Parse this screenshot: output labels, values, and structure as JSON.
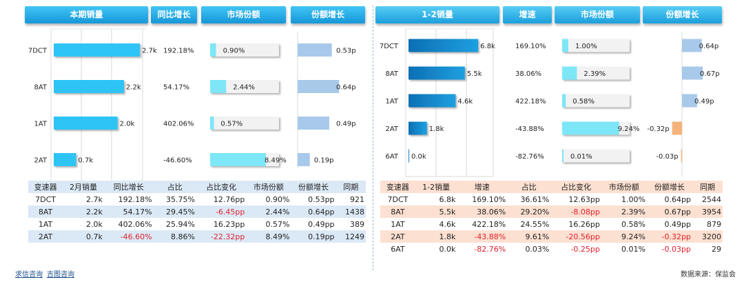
{
  "chart_data": [
    {
      "type": "bar",
      "title": "本期销量",
      "categories": [
        "7DCT",
        "8AT",
        "1AT",
        "2AT"
      ],
      "panels": [
        {
          "name": "本期销量",
          "values": [
            2.7,
            2.2,
            2.0,
            0.7
          ],
          "labels": [
            "2.7k",
            "2.2k",
            "2.0k",
            "0.7k"
          ]
        },
        {
          "name": "同比增长",
          "values": [
            192.18,
            54.17,
            402.06,
            -46.6
          ],
          "labels": [
            "192.18%",
            "54.17%",
            "402.06%",
            "-46.60%"
          ]
        },
        {
          "name": "市场份额",
          "values": [
            0.9,
            2.44,
            0.57,
            8.49
          ],
          "labels": [
            "0.90%",
            "2.44%",
            "0.57%",
            "8.49%"
          ]
        },
        {
          "name": "份额增长",
          "values": [
            0.53,
            0.64,
            0.49,
            0.19
          ],
          "labels": [
            "0.53p",
            "0.64p",
            "0.49p",
            "0.19p"
          ]
        }
      ]
    },
    {
      "type": "bar",
      "title": "1-2销量",
      "categories": [
        "7DCT",
        "8AT",
        "1AT",
        "2AT",
        "6AT"
      ],
      "panels": [
        {
          "name": "1-2销量",
          "values": [
            6.8,
            5.5,
            4.6,
            1.8,
            0.0
          ],
          "labels": [
            "6.8k",
            "5.5k",
            "4.6k",
            "1.8k",
            "0.0k"
          ]
        },
        {
          "name": "增速",
          "values": [
            169.1,
            38.06,
            422.18,
            -43.88,
            -82.76
          ],
          "labels": [
            "169.10%",
            "38.06%",
            "422.18%",
            "-43.88%",
            "-82.76%"
          ]
        },
        {
          "name": "市场份额",
          "values": [
            1.0,
            2.39,
            0.58,
            9.24,
            0.01
          ],
          "labels": [
            "1.00%",
            "2.39%",
            "0.58%",
            "9.24%",
            "0.01%"
          ]
        },
        {
          "name": "份额增长",
          "values": [
            0.64,
            0.67,
            0.49,
            -0.32,
            -0.03
          ],
          "labels": [
            "0.64p",
            "0.67p",
            "0.49p",
            "-0.32p",
            "-0.03p"
          ]
        }
      ]
    }
  ],
  "left_table": {
    "headers": [
      "变速器",
      "2月销量",
      "同比增长",
      "占比",
      "占比变化",
      "市场份额",
      "份额增长",
      "同期"
    ],
    "rows": [
      [
        "7DCT",
        "2.7k",
        "192.18%",
        "35.75%",
        "12.76pp",
        "0.90%",
        "0.53pp",
        "921"
      ],
      [
        "8AT",
        "2.2k",
        "54.17%",
        "29.45%",
        "-6.45pp",
        "2.44%",
        "0.64pp",
        "1438"
      ],
      [
        "1AT",
        "2.0k",
        "402.06%",
        "25.94%",
        "16.23pp",
        "0.57%",
        "0.49pp",
        "389"
      ],
      [
        "2AT",
        "0.7k",
        "-46.60%",
        "8.86%",
        "-22.32pp",
        "8.49%",
        "0.19pp",
        "1249"
      ]
    ]
  },
  "right_table": {
    "headers": [
      "变速器",
      "1-2销量",
      "增速",
      "占比",
      "占比变化",
      "市场份额",
      "份额增长",
      "同期"
    ],
    "rows": [
      [
        "7DCT",
        "6.8k",
        "169.10%",
        "36.61%",
        "12.63pp",
        "1.00%",
        "0.64pp",
        "2544"
      ],
      [
        "8AT",
        "5.5k",
        "38.06%",
        "29.20%",
        "-8.08pp",
        "2.39%",
        "0.67pp",
        "3954"
      ],
      [
        "1AT",
        "4.6k",
        "422.18%",
        "24.55%",
        "16.26pp",
        "0.58%",
        "0.49pp",
        "879"
      ],
      [
        "2AT",
        "1.8k",
        "-43.88%",
        "9.61%",
        "-20.56pp",
        "9.24%",
        "-0.32pp",
        "3200"
      ],
      [
        "6AT",
        "0.0k",
        "-82.76%",
        "0.03%",
        "-0.25pp",
        "0.01%",
        "-0.03pp",
        "29"
      ]
    ]
  },
  "footer": {
    "link1": "求信咨询",
    "link2": "吉图咨询",
    "source": "数据来源：保监会"
  },
  "colors": {
    "bar_blue": "#2ec4f5",
    "bar_dark": "#0f7fc4",
    "share_cyan": "#7de6f7",
    "growth_blue": "#a8c9ea",
    "growth_neg": "#f5b27a",
    "negative_text": "#e0202c"
  }
}
